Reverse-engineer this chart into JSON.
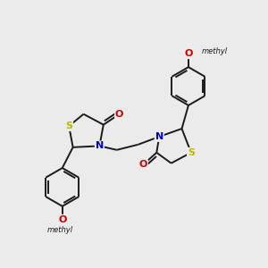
{
  "bg_color": "#ebebeb",
  "bond_color": "#1a1a1a",
  "S_color": "#b8b800",
  "N_color": "#0000cc",
  "O_color": "#cc0000",
  "C_color": "#1a1a1a",
  "line_width": 1.4,
  "font_size": 8,
  "figsize": [
    3.0,
    3.0
  ],
  "dpi": 100,
  "xlim": [
    0,
    10
  ],
  "ylim": [
    0,
    10
  ]
}
